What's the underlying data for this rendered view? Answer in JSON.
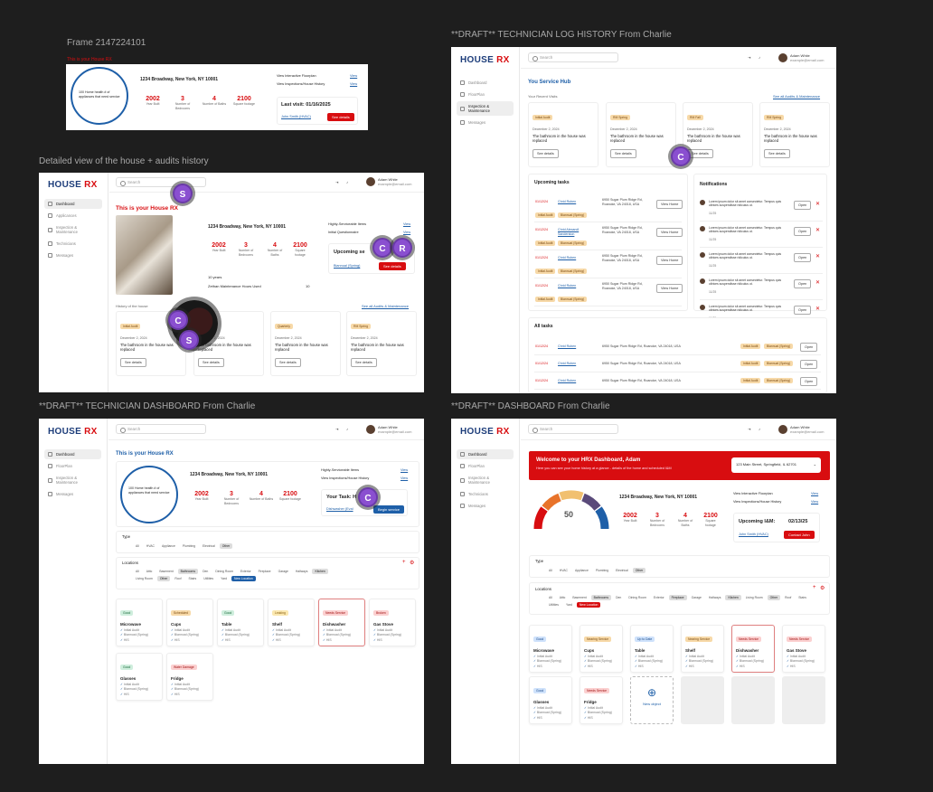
{
  "labels": {
    "frame1": "Frame 2147224101",
    "frame2": "Detailed view of the house + audits history",
    "frame3": "**DRAFT** TECHNICIAN LOG HISTORY From Charlie",
    "frame4": "**DRAFT** TECHNICIAN DASHBOARD From Charlie",
    "frame5": "**DRAFT** DASHBOARD From Charlie"
  },
  "common": {
    "logo_a": "HOUSE",
    "logo_b": "RX",
    "search": "Search",
    "user_name": "Adam White",
    "user_email": "example@email.com",
    "address": "1234 Broadway, New York, NY 10001",
    "stats": [
      {
        "n": "2002",
        "l": "Year Built"
      },
      {
        "n": "3",
        "l": "Number of Bedrooms"
      },
      {
        "n": "4",
        "l": "Number of Baths"
      },
      {
        "n": "2100",
        "l": "Square footage"
      }
    ],
    "is_your_house": "This is your House RX",
    "health": "100 Home health # of appliances that need service",
    "view": "View"
  },
  "nav_a": [
    "Dashboard",
    "Applicances",
    "Inspection & Maintenance",
    "Technicians",
    "Messages"
  ],
  "nav_b": [
    "Dashboard",
    "FloorPlan",
    "Inspection & Maintenance",
    "Messages"
  ],
  "nav_c": [
    "Dashboard",
    "FloorPlan",
    "Inspection & Maintenance",
    "Technicians",
    "Messages"
  ],
  "frame1": {
    "red": "This is your House RX",
    "link1": "View Interactive Floorplan",
    "link2": "View Inspections/House History",
    "last": "Last visit: 01/16/2025",
    "tech": "John Smith (HVAC)",
    "btn": "See details"
  },
  "frame2": {
    "link1": "Highly-Serviceable Items",
    "link2": "Initial Questionnaire",
    "upcoming": "Upcoming se",
    "upc_tag": "Biannual (Spring)",
    "btn": "See details",
    "years": "10 years",
    "hours_l": "Zethan Maintenance Hours Used",
    "hours_v": "10",
    "history": "History of the house",
    "see_all": "See all Audits & Maintenance",
    "visits": [
      {
        "tag": "Initial Audit",
        "date": "December 2, 2024",
        "text": "The bathroom in the house was replaced",
        "btn": "See details"
      },
      {
        "tag": "HVAC",
        "date": "December 2, 2024",
        "text": "The bathroom in the house was replaced",
        "btn": "See details"
      },
      {
        "tag": "Quarterly",
        "date": "December 2, 2024",
        "text": "The bathroom in the house was replaced",
        "btn": "See details"
      },
      {
        "tag": "RM Spring",
        "date": "December 2, 2024",
        "text": "The bathroom in the house was replaced",
        "btn": "See details"
      }
    ],
    "bubbles": [
      "S",
      "C",
      "R",
      "C",
      "S"
    ]
  },
  "frame3": {
    "hub": "You Service Hub",
    "recent": "Your Recent Visits",
    "see_all": "See all Audits & Maintenance",
    "visits": [
      {
        "tag": "Initial Audit",
        "date": "December 2, 2024",
        "text": "The bathroom in the house was replaced",
        "btn": "See details"
      },
      {
        "tag": "RM Spring",
        "date": "December 2, 2024",
        "text": "The bathroom in the house was replaced",
        "btn": "See details"
      },
      {
        "tag": "RM Fall",
        "date": "December 2, 2024",
        "text": "The bathroom in the house was replaced",
        "btn": "See details"
      },
      {
        "tag": "RM Spring",
        "date": "December 2, 2024",
        "text": "The bathroom in the house was replaced",
        "btn": "See details"
      }
    ],
    "upcoming_title": "Upcoming tasks",
    "tasks": [
      {
        "date": "01/12/24",
        "name": "Chrid Ruben",
        "addr": "6950 Sugar Plum Ridge Rd, Roanoke, VA 24018, USA",
        "t1": "Initial Audit",
        "t2": "Biannual (Spring)"
      },
      {
        "date": "01/12/24",
        "name": "Chrid Alexandl Sanderston",
        "addr": "6950 Sugar Plum Ridge Rd, Roanoke, VA 24018, USA",
        "t1": "Initial Audit",
        "t2": "Biannual (Spring)"
      },
      {
        "date": "01/12/24",
        "name": "Chrid Ruben",
        "addr": "6950 Sugar Plum Ridge Rd, Roanoke, VA 24018, USA",
        "t1": "Initial Audit",
        "t2": "Biannual (Spring)"
      },
      {
        "date": "01/12/24",
        "name": "Chrid Ruben",
        "addr": "6950 Sugar Plum Ridge Rd, Roanoke, VA 24018, USA",
        "t1": "Initial Audit",
        "t2": "Biannual (Spring)"
      }
    ],
    "view_home": "View Home",
    "notif_title": "Notifications",
    "notif_text": "Lorem ipsum dolor sit amet consectetur. Tempus quis ultrices suspendisse ridiculus ut.",
    "notif_date": "11/25",
    "open": "Open",
    "all_title": "All tasks",
    "all": [
      {
        "date": "01/12/24",
        "name": "Chrid Ruben",
        "addr": "6950 Sugar Plum Ridge Rd, Roanoke, VA 24018, USA",
        "t1": "Initial Audit",
        "t2": "Biannual (Spring)"
      },
      {
        "date": "01/12/24",
        "name": "Chrid Ruben",
        "addr": "6950 Sugar Plum Ridge Rd, Roanoke, VA 24018, USA",
        "t1": "Initial Audit",
        "t2": "Biannual (Spring)"
      },
      {
        "date": "01/12/24",
        "name": "Chrid Ruben",
        "addr": "6950 Sugar Plum Ridge Rd, Roanoke, VA 24018, USA",
        "t1": "Initial Audit",
        "t2": "Biannual (Spring)"
      }
    ],
    "bubble": "C"
  },
  "frame4": {
    "link1": "Highly-Serviceable Items",
    "link2": "View Inspections/House History",
    "task": "Your Task: H",
    "task_tag": "Dishwasher (Eval",
    "begin": "Begin service",
    "bubble": "C",
    "type_label": "Type",
    "types": [
      "All",
      "HVAC",
      "Appliance",
      "Plumbing",
      "Electrical",
      "Other"
    ],
    "loc_label": "Locations",
    "locs": [
      "All",
      "Attic",
      "Basement",
      "Bathrooms",
      "Den",
      "Dining Room",
      "Exterior",
      "Fireplace",
      "Garage",
      "Hallways",
      "Kitchen",
      "Living Room",
      "Other",
      "Roof",
      "Stairs",
      "Utilities",
      "Yard",
      "New Location"
    ],
    "objects": [
      {
        "status": "Good",
        "name": "Microwave",
        "s": "gr"
      },
      {
        "status": "Scheduled",
        "name": "Cups",
        "s": "or"
      },
      {
        "status": "Good",
        "name": "Table",
        "s": "gr"
      },
      {
        "status": "Leaking",
        "name": "Shelf",
        "s": "ye"
      },
      {
        "status": "Needs Service",
        "name": "Dishwasher",
        "s": "rd"
      },
      {
        "status": "Broken",
        "name": "Gas Stove",
        "s": "rd"
      },
      {
        "status": "Good",
        "name": "Glasses",
        "s": "gr"
      },
      {
        "status": "Water Damage",
        "name": "Fridge",
        "s": "rd"
      }
    ],
    "checks": [
      "Initial Audit",
      "Biannual (Spring)",
      "HIS"
    ]
  },
  "frame5": {
    "welcome": "Welcome to your HRX Dashboard, Adam",
    "welcome_sub": "Here you can see your home history at a glance - details of the home and scheduled I&M",
    "address_sel": "123 Main Street, Springfield, IL 62701",
    "gauge": "50",
    "link1": "View Interactive Floorplan",
    "link2": "View Inspections/House History",
    "upcoming": "Upcoming I&M:",
    "upcoming_date": "02/13/25",
    "tech": "John Smith (HVAC)",
    "contact": "Contact John",
    "type_label": "Type",
    "types": [
      "All",
      "HVAC",
      "Appliance",
      "Plumbing",
      "Electrical",
      "Other"
    ],
    "loc_label": "Locations",
    "locs": [
      "All",
      "Attic",
      "Basement",
      "Bathrooms",
      "Den",
      "Dining Room",
      "Exterior",
      "Fireplace",
      "Garage",
      "Hallways",
      "Kitchen",
      "Living Room",
      "Other",
      "Roof",
      "Stairs",
      "Utilities",
      "Yard",
      "New Location"
    ],
    "objects": [
      {
        "status": "Good",
        "name": "Microwave",
        "s": "bl"
      },
      {
        "status": "Nearing Service",
        "name": "Cups",
        "s": "or"
      },
      {
        "status": "Up to Date",
        "name": "Table",
        "s": "bl"
      },
      {
        "status": "Nearing Service",
        "name": "Shelf",
        "s": "or"
      },
      {
        "status": "Needs Service",
        "name": "Dishwasher",
        "s": "rd"
      },
      {
        "status": "Needs Service",
        "name": "Gas Stove",
        "s": "rd"
      },
      {
        "status": "Good",
        "name": "Glasses",
        "s": "bl"
      },
      {
        "status": "Needs Service",
        "name": "Fridge",
        "s": "rd"
      }
    ],
    "checks": [
      "Initial Audit",
      "Biannual (Spring)",
      "HIS"
    ],
    "new_object": "New object"
  }
}
